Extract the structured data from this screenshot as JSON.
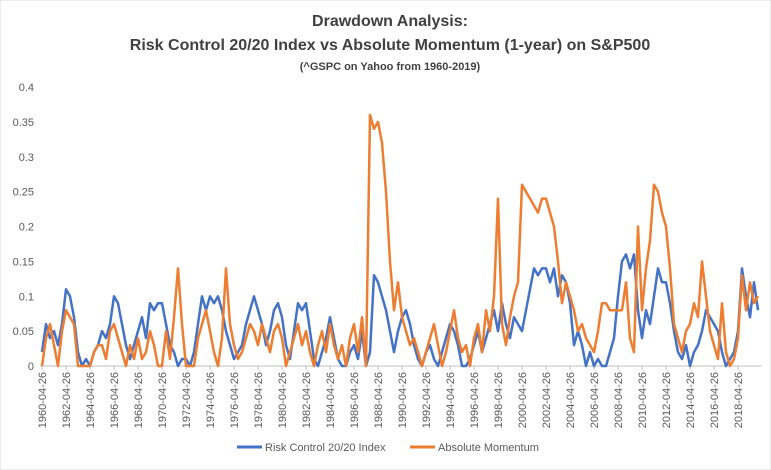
{
  "chart_data": {
    "type": "line",
    "title": [
      "Drawdown Analysis:",
      "Risk Control 20/20 Index vs Absolute Momentum (1-year) on S&P500"
    ],
    "subtitle": "(^GSPC on Yahoo from 1960-2019)",
    "categories": [
      "1960-04-26",
      null,
      null,
      null,
      null,
      null,
      "1962-04-26",
      null,
      null,
      null,
      null,
      null,
      "1964-04-26",
      null,
      null,
      null,
      null,
      null,
      "1966-04-26",
      null,
      null,
      null,
      null,
      null,
      "1968-04-26",
      null,
      null,
      null,
      null,
      null,
      "1970-04-26",
      null,
      null,
      null,
      null,
      null,
      "1972-04-26",
      null,
      null,
      null,
      null,
      null,
      "1974-04-26",
      null,
      null,
      null,
      null,
      null,
      "1976-04-26",
      null,
      null,
      null,
      null,
      null,
      "1978-04-26",
      null,
      null,
      null,
      null,
      null,
      "1980-04-26",
      null,
      null,
      null,
      null,
      null,
      "1982-04-26",
      null,
      null,
      null,
      null,
      null,
      "1984-04-26",
      null,
      null,
      null,
      null,
      null,
      "1986-04-26",
      null,
      null,
      null,
      null,
      null,
      "1988-04-26",
      null,
      null,
      null,
      null,
      null,
      "1990-04-26",
      null,
      null,
      null,
      null,
      null,
      "1992-04-26",
      null,
      null,
      null,
      null,
      null,
      "1994-04-26",
      null,
      null,
      null,
      null,
      null,
      "1996-04-26",
      null,
      null,
      null,
      null,
      null,
      "1998-04-26",
      null,
      null,
      null,
      null,
      null,
      "2000-04-26",
      null,
      null,
      null,
      null,
      null,
      "2002-04-26",
      null,
      null,
      null,
      null,
      null,
      "2004-04-26",
      null,
      null,
      null,
      null,
      null,
      "2006-04-26",
      null,
      null,
      null,
      null,
      null,
      "2008-04-26",
      null,
      null,
      null,
      null,
      null,
      "2010-04-26",
      null,
      null,
      null,
      null,
      null,
      "2012-04-26",
      null,
      null,
      null,
      null,
      null,
      "2014-04-26",
      null,
      null,
      null,
      null,
      null,
      "2016-04-26",
      null,
      null,
      null,
      null,
      null,
      "2018-04-26",
      null,
      null,
      null,
      null,
      null
    ],
    "series": [
      {
        "name": "Risk Control 20/20 Index",
        "color": "#4472c4",
        "values": [
          0.02,
          0.06,
          0.04,
          0.05,
          0.03,
          0.06,
          0.11,
          0.1,
          0.07,
          0.02,
          0.0,
          0.01,
          0.0,
          0.02,
          0.03,
          0.05,
          0.04,
          0.06,
          0.1,
          0.09,
          0.06,
          0.03,
          0.01,
          0.03,
          0.05,
          0.07,
          0.04,
          0.09,
          0.08,
          0.09,
          0.09,
          0.06,
          0.03,
          0.02,
          0.0,
          0.01,
          0.01,
          0.0,
          0.02,
          0.06,
          0.1,
          0.08,
          0.1,
          0.09,
          0.1,
          0.08,
          0.05,
          0.03,
          0.01,
          0.02,
          0.03,
          0.06,
          0.08,
          0.1,
          0.08,
          0.06,
          0.03,
          0.05,
          0.08,
          0.09,
          0.07,
          0.03,
          0.01,
          0.05,
          0.09,
          0.08,
          0.09,
          0.05,
          0.01,
          0.0,
          0.02,
          0.04,
          0.07,
          0.04,
          0.01,
          0.0,
          0.0,
          0.02,
          0.03,
          0.01,
          0.05,
          0.0,
          0.02,
          0.13,
          0.12,
          0.1,
          0.08,
          0.05,
          0.02,
          0.05,
          0.07,
          0.08,
          0.06,
          0.03,
          0.01,
          0.0,
          0.02,
          0.03,
          0.01,
          0.0,
          0.02,
          0.04,
          0.06,
          0.05,
          0.03,
          0.0,
          0.0,
          0.01,
          0.03,
          0.05,
          0.02,
          0.04,
          0.06,
          0.08,
          0.05,
          0.09,
          0.06,
          0.04,
          0.07,
          0.06,
          0.05,
          0.08,
          0.11,
          0.14,
          0.13,
          0.14,
          0.14,
          0.12,
          0.14,
          0.1,
          0.13,
          0.12,
          0.09,
          0.03,
          0.05,
          0.03,
          0.0,
          0.02,
          0.0,
          0.01,
          0.0,
          0.0,
          0.02,
          0.04,
          0.1,
          0.15,
          0.16,
          0.14,
          0.16,
          0.08,
          0.04,
          0.08,
          0.06,
          0.1,
          0.14,
          0.12,
          0.12,
          0.09,
          0.05,
          0.02,
          0.01,
          0.03,
          0.0,
          0.02,
          0.03,
          0.05,
          0.08,
          0.07,
          0.06,
          0.05,
          0.02,
          0.0,
          0.01,
          0.02,
          0.05,
          0.14,
          0.1,
          0.07,
          0.12,
          0.08
        ]
      },
      {
        "name": "Absolute Momentum",
        "color": "#ed7d31",
        "values": [
          0.0,
          0.04,
          0.06,
          0.03,
          0.0,
          0.05,
          0.08,
          0.07,
          0.06,
          0.0,
          0.0,
          0.0,
          0.0,
          0.02,
          0.03,
          0.03,
          0.01,
          0.05,
          0.06,
          0.04,
          0.02,
          0.0,
          0.03,
          0.01,
          0.04,
          0.01,
          0.02,
          0.05,
          0.03,
          0.0,
          0.0,
          0.05,
          0.01,
          0.07,
          0.14,
          0.06,
          0.0,
          0.0,
          0.0,
          0.04,
          0.06,
          0.08,
          0.05,
          0.02,
          0.0,
          0.04,
          0.14,
          0.06,
          0.03,
          0.01,
          0.02,
          0.04,
          0.06,
          0.05,
          0.03,
          0.06,
          0.04,
          0.02,
          0.05,
          0.06,
          0.04,
          0.0,
          0.02,
          0.04,
          0.06,
          0.03,
          0.05,
          0.02,
          0.0,
          0.03,
          0.05,
          0.02,
          0.06,
          0.03,
          0.01,
          0.03,
          0.0,
          0.04,
          0.06,
          0.02,
          0.07,
          0.0,
          0.36,
          0.34,
          0.35,
          0.32,
          0.25,
          0.15,
          0.08,
          0.12,
          0.07,
          0.05,
          0.03,
          0.04,
          0.02,
          0.0,
          0.02,
          0.04,
          0.06,
          0.03,
          0.0,
          0.02,
          0.05,
          0.08,
          0.04,
          0.02,
          0.03,
          0.0,
          0.04,
          0.06,
          0.02,
          0.08,
          0.05,
          0.1,
          0.24,
          0.06,
          0.03,
          0.07,
          0.1,
          0.12,
          0.26,
          0.25,
          0.24,
          0.23,
          0.22,
          0.24,
          0.24,
          0.22,
          0.2,
          0.15,
          0.09,
          0.12,
          0.1,
          0.08,
          0.05,
          0.06,
          0.04,
          0.03,
          0.02,
          0.05,
          0.09,
          0.09,
          0.08,
          0.08,
          0.08,
          0.08,
          0.12,
          0.04,
          0.02,
          0.2,
          0.08,
          0.14,
          0.18,
          0.26,
          0.25,
          0.22,
          0.2,
          0.14,
          0.06,
          0.04,
          0.02,
          0.05,
          0.06,
          0.09,
          0.07,
          0.15,
          0.1,
          0.05,
          0.03,
          0.01,
          0.09,
          0.02,
          0.0,
          0.01,
          0.04,
          0.13,
          0.08,
          0.12,
          0.09,
          0.1
        ]
      }
    ],
    "ylim": [
      0,
      0.4
    ],
    "yticks": [
      0,
      0.05,
      0.1,
      0.15,
      0.2,
      0.25,
      0.3,
      0.35,
      0.4
    ],
    "grid": false,
    "legend": "bottom"
  }
}
